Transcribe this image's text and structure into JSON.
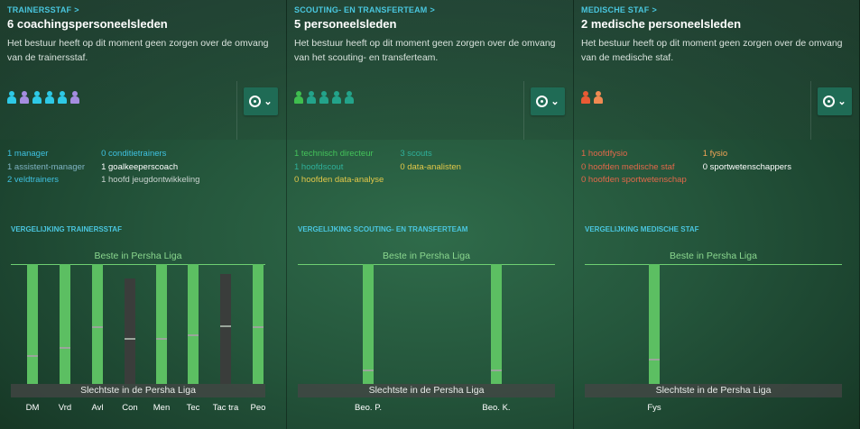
{
  "panels": [
    {
      "header": "TRAINERSSTAF",
      "title": "6 coachingspersoneelsleden",
      "desc": "Het bestuur heeft op dit moment geen zorgen over de omvang van de trainersstaf.",
      "figures": [
        "#2ec9e6",
        "#a58de0",
        "#2ec9e6",
        "#2ec9e6",
        "#2ec9e6",
        "#a58de0"
      ],
      "counts": [
        {
          "text": "1 manager",
          "color": "#3fc1e0"
        },
        {
          "text": "1 assistent-manager",
          "color": "#7fb3c3"
        },
        {
          "text": "2 veldtrainers",
          "color": "#3fc1e0"
        },
        {
          "text": "0 conditietrainers",
          "color": "#3fc1e0"
        },
        {
          "text": "1 goalkeeperscoach",
          "color": "#ffffff"
        },
        {
          "text": "1 hoofd jeugdontwikkeling",
          "color": "#c9d3cf"
        }
      ],
      "chart_title": "VERGELIJKING TRAINERSSTAF",
      "best": "Beste in Persha Liga",
      "worst": "Slechtste in de Persha Liga"
    },
    {
      "header": "SCOUTING- EN TRANSFERTEAM",
      "title": "5 personeelsleden",
      "desc": "Het bestuur heeft op dit moment geen zorgen over de omvang van het scouting- en transferteam.",
      "figures": [
        "#3fbe4f",
        "#23a38a",
        "#23a38a",
        "#23a38a",
        "#23a38a"
      ],
      "counts": [
        {
          "text": "1 technisch directeur",
          "color": "#44c25a"
        },
        {
          "text": "1 hoofdscout",
          "color": "#2fb09a"
        },
        {
          "text": "0 hoofden data-analyse",
          "color": "#e3c849"
        },
        {
          "text": "3 scouts",
          "color": "#2fb09a"
        },
        {
          "text": "0 data-analisten",
          "color": "#e3c849"
        }
      ],
      "chart_title": "VERGELIJKING SCOUTING- EN TRANSFERTEAM",
      "best": "Beste in Persha Liga",
      "worst": "Slechtste in de Persha Liga"
    },
    {
      "header": "MEDISCHE STAF",
      "title": "2 medische personeelsleden",
      "desc": "Het bestuur heeft op dit moment geen zorgen over de omvang van de medische staf.",
      "figures": [
        "#e85a34",
        "#f08a52"
      ],
      "counts": [
        {
          "text": "1 hoofdfysio",
          "color": "#e3684a"
        },
        {
          "text": "0 hoofden medische staf",
          "color": "#e3684a"
        },
        {
          "text": "0 hoofden sportwetenschap",
          "color": "#e3684a"
        },
        {
          "text": "1 fysio",
          "color": "#f0a456"
        },
        {
          "text": "0 sportwetenschappers",
          "color": "#ffffff"
        }
      ],
      "chart_title": "VERGELIJKING MEDISCHE STAF",
      "best": "Beste in Persha Liga",
      "worst": "Slechtste in de Persha Liga"
    }
  ],
  "chart_data": [
    {
      "type": "bar",
      "title": "VERGELIJKING TRAINERSSTAF",
      "categories": [
        "DM",
        "Vrd",
        "Avl",
        "Con",
        "Men",
        "Tec",
        "Tac tra",
        "Peo"
      ],
      "values": [
        1.0,
        1.0,
        1.0,
        0.88,
        1.0,
        1.0,
        0.92,
        1.0
      ],
      "markers": [
        0.24,
        0.31,
        0.48,
        0.38,
        0.38,
        0.41,
        0.49,
        0.48
      ],
      "is_best": [
        true,
        true,
        true,
        false,
        true,
        true,
        false,
        true
      ],
      "ylim": [
        0,
        1
      ]
    },
    {
      "type": "bar",
      "title": "VERGELIJKING SCOUTING- EN TRANSFERTEAM",
      "categories": [
        "Beo. P.",
        "Beo. K."
      ],
      "values": [
        1.0,
        1.0
      ],
      "markers": [
        0.12,
        0.12
      ],
      "is_best": [
        true,
        true
      ],
      "ylim": [
        0,
        1
      ]
    },
    {
      "type": "bar",
      "title": "VERGELIJKING MEDISCHE STAF",
      "categories": [
        "Fys"
      ],
      "values": [
        1.0
      ],
      "markers": [
        0.21
      ],
      "is_best": [
        true
      ],
      "ylim": [
        0,
        1
      ]
    }
  ]
}
